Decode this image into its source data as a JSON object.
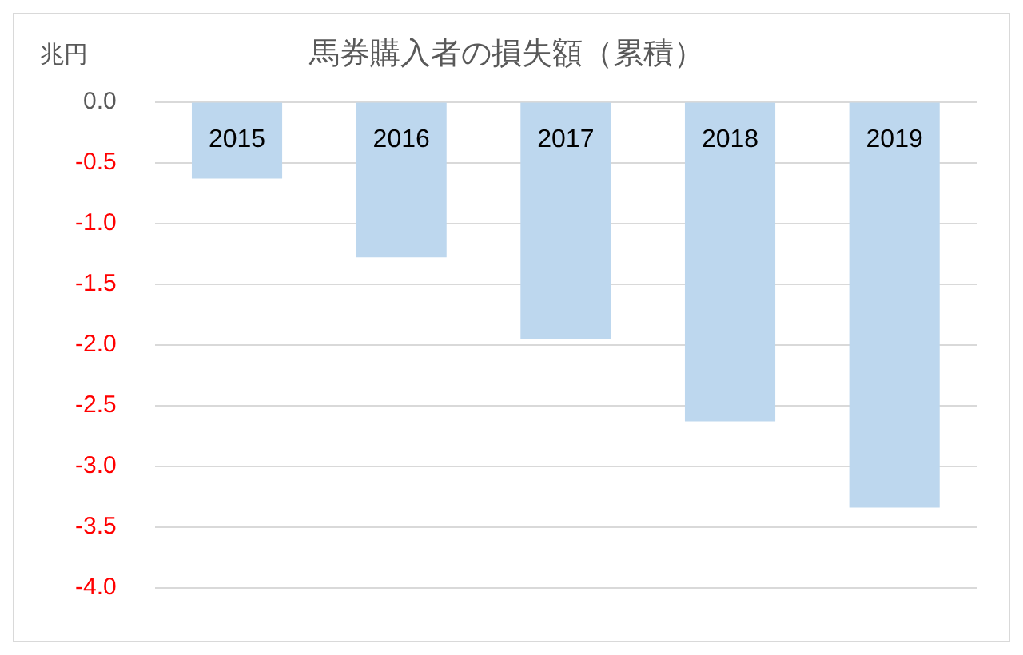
{
  "chart_data": {
    "type": "bar",
    "title": "馬券購入者の損失額（累積）",
    "ylabel": "兆円",
    "categories": [
      "2015",
      "2016",
      "2017",
      "2018",
      "2019"
    ],
    "values": [
      -0.63,
      -1.28,
      -1.95,
      -2.63,
      -3.34
    ],
    "color": "#bdd7ee",
    "ylim": [
      -4.0,
      0.0
    ],
    "yticks": [
      {
        "value": 0,
        "label": "0.0"
      },
      {
        "value": -0.5,
        "label": "-0.5"
      },
      {
        "value": -1,
        "label": "-1.0"
      },
      {
        "value": -1.5,
        "label": "-1.5"
      },
      {
        "value": -2,
        "label": "-2.0"
      },
      {
        "value": -2.5,
        "label": "-2.5"
      },
      {
        "value": -3,
        "label": "-3.0"
      },
      {
        "value": -3.5,
        "label": "-3.5"
      },
      {
        "value": -4,
        "label": "-4.0"
      }
    ],
    "grid": true
  }
}
